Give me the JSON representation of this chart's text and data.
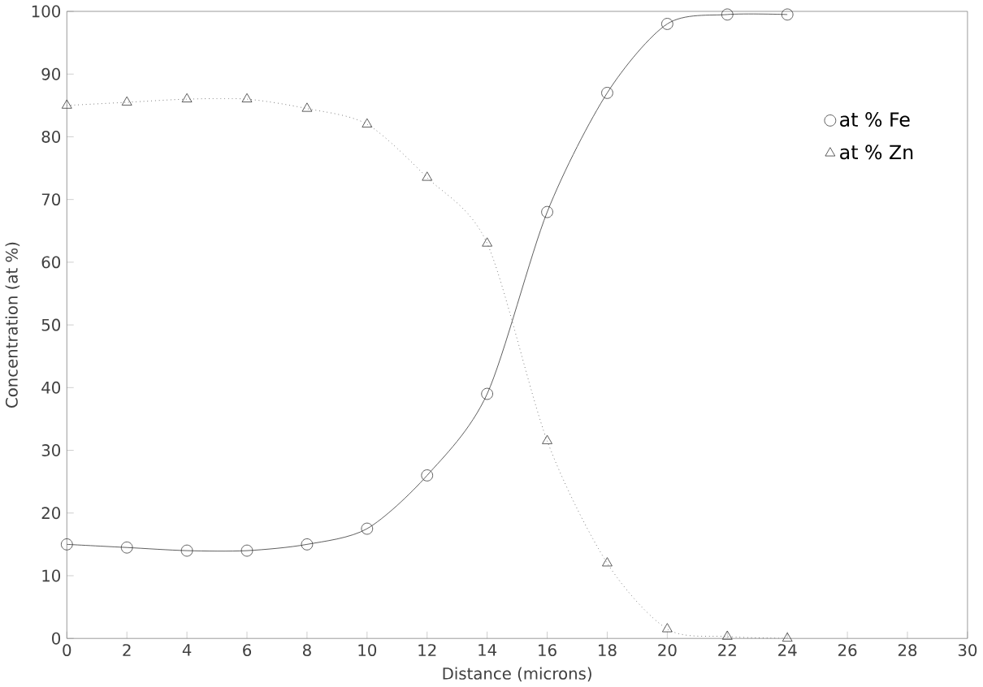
{
  "chart_data": {
    "type": "line",
    "xlabel": "Distance (microns)",
    "ylabel": "Concentration (at %)",
    "x": [
      0,
      2,
      4,
      6,
      8,
      10,
      12,
      14,
      16,
      18,
      20,
      22,
      24
    ],
    "series": [
      {
        "name": "at % Fe",
        "color": "#333333",
        "marker": "circle",
        "line_style": "solid",
        "values": [
          15,
          14.5,
          14,
          14,
          15,
          17.5,
          26,
          39,
          68,
          87,
          98,
          99.5,
          99.5
        ]
      },
      {
        "name": "at % Zn",
        "color": "#333333",
        "marker": "triangle",
        "line_style": "dotted",
        "values": [
          85,
          85.5,
          86,
          86,
          84.5,
          82,
          73.5,
          63,
          31.5,
          12,
          1.5,
          0.3,
          0
        ]
      }
    ],
    "xlim": [
      0,
      30
    ],
    "xticks": [
      0,
      2,
      4,
      6,
      8,
      10,
      12,
      14,
      16,
      18,
      20,
      22,
      24,
      26,
      28,
      30
    ],
    "ylim": [
      0,
      100
    ],
    "yticks": [
      0,
      10,
      20,
      30,
      40,
      50,
      60,
      70,
      80,
      90,
      100
    ],
    "grid": false,
    "legend": "top right"
  }
}
